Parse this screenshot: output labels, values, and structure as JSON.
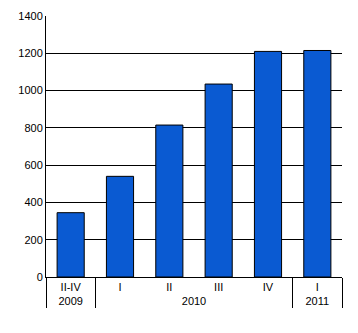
{
  "chart_data": {
    "type": "bar",
    "categories": [
      [
        "2009",
        "II-IV"
      ],
      [
        "2010",
        "I"
      ],
      [
        "2010",
        "II"
      ],
      [
        "2010",
        "III"
      ],
      [
        "2010",
        "IV"
      ],
      [
        "2011",
        "I"
      ]
    ],
    "values": [
      345,
      540,
      815,
      1035,
      1210,
      1215
    ],
    "color": "#0a5ad2",
    "ylim": [
      0,
      1400
    ],
    "yticks": [
      0,
      200,
      400,
      600,
      800,
      1000,
      1200,
      1400
    ],
    "grid": true
  }
}
